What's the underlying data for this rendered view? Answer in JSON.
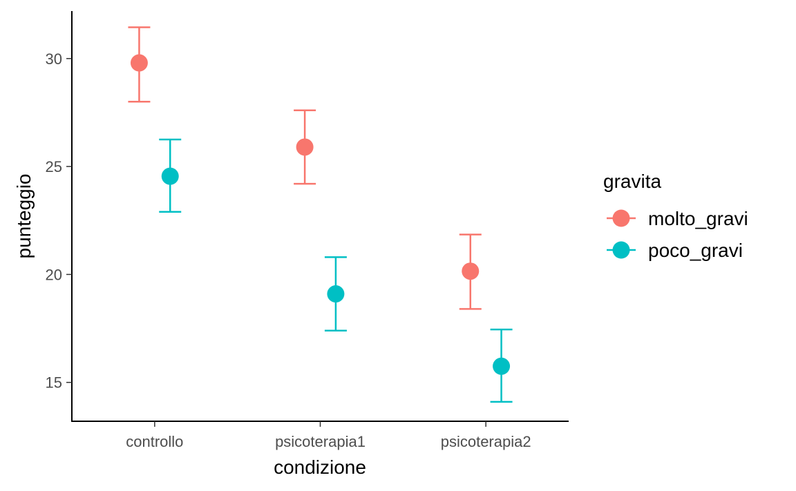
{
  "chart_data": {
    "type": "scatter",
    "subtype": "point-range with error bars (dodged)",
    "xlabel": "condizione",
    "ylabel": "punteggio",
    "categories": [
      "controllo",
      "psicoterapia1",
      "psicoterapia2"
    ],
    "ylim": [
      13.2,
      32.2
    ],
    "yticks": [
      15,
      20,
      25,
      30
    ],
    "grid": false,
    "legend": {
      "title": "gravita",
      "placement": "right"
    },
    "series": [
      {
        "name": "molto_gravi",
        "color": "#F8766D",
        "values": [
          29.8,
          25.9,
          20.15
        ],
        "lower": [
          28.0,
          24.2,
          18.4
        ],
        "upper": [
          31.45,
          27.6,
          21.85
        ]
      },
      {
        "name": "poco_gravi",
        "color": "#00BFC4",
        "values": [
          24.55,
          19.1,
          15.75
        ],
        "lower": [
          22.9,
          17.4,
          14.1
        ],
        "upper": [
          26.25,
          20.8,
          17.45
        ]
      }
    ]
  }
}
